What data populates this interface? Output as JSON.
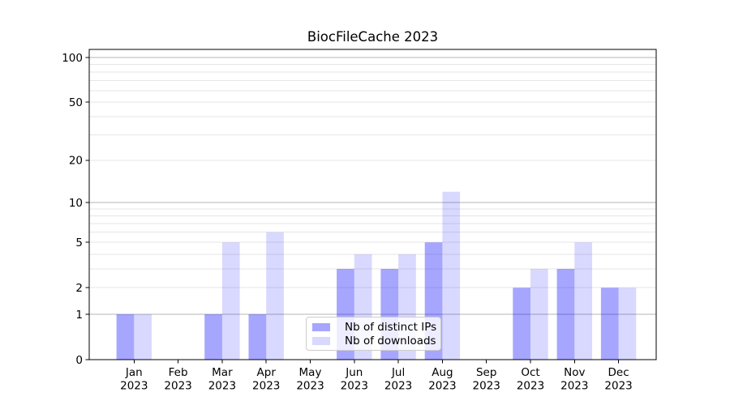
{
  "title": "BiocFileCache 2023",
  "chart_data": {
    "type": "bar",
    "title": "BiocFileCache 2023",
    "categories": [
      "Jan",
      "Feb",
      "Mar",
      "Apr",
      "May",
      "Jun",
      "Jul",
      "Aug",
      "Sep",
      "Oct",
      "Nov",
      "Dec"
    ],
    "category_sublabel": "2023",
    "series": [
      {
        "name": "Nb of distinct IPs",
        "color": "rgba(0,0,255,0.35)",
        "values": [
          1,
          0,
          1,
          1,
          0,
          3,
          3,
          5,
          0,
          2,
          3,
          2
        ]
      },
      {
        "name": "Nb of downloads",
        "color": "rgba(0,0,255,0.15)",
        "values": [
          1,
          0,
          5,
          6,
          0,
          4,
          4,
          12,
          0,
          3,
          5,
          2
        ]
      }
    ],
    "yscale": "log1p",
    "ylim": [
      0,
      113
    ],
    "y_ticks": [
      0,
      1,
      2,
      5,
      10,
      20,
      50,
      100
    ],
    "y_major_gridlines": [
      1,
      10,
      100
    ],
    "y_minor_gridlines": [
      2,
      3,
      4,
      5,
      6,
      7,
      8,
      9,
      20,
      30,
      40,
      50,
      60,
      70,
      80,
      90
    ],
    "grid": true,
    "legend_position": "lower center inside"
  },
  "style": {
    "bar_distinct_ips": "rgba(0,0,255,0.35)",
    "bar_downloads": "rgba(0,0,255,0.15)",
    "grid_major": "#b4b4b4",
    "grid_minor": "#e6e6e6",
    "axis_color": "#000000",
    "background": "#ffffff",
    "legend_border": "#cccccc"
  }
}
